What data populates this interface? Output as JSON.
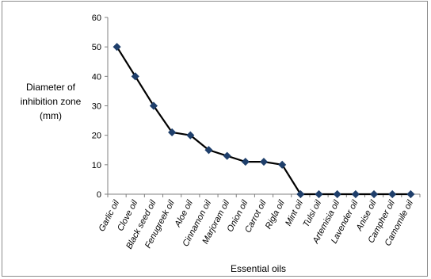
{
  "chart_data": {
    "type": "line",
    "title": "",
    "xlabel": "Essential oils",
    "ylabel_lines": [
      "Diameter of",
      "inhibition zone",
      "(mm)"
    ],
    "ylim": [
      0,
      60
    ],
    "yticks": [
      0,
      10,
      20,
      30,
      40,
      50,
      60
    ],
    "grid": false,
    "legend": "none",
    "categories": [
      "Garlic oil",
      "Clove oil",
      "Black seed oil",
      "Fenugreek oil",
      "Aloe oil",
      "Cinnamon oil",
      "Marjoram oil",
      "Onion oil",
      "Carrot oil",
      "Rigla oil",
      "Mint oil",
      "Tulsi oil",
      "Artemisia oil",
      "Lavender oil",
      "Anise oil",
      "Campher oil",
      "Camomile oil"
    ],
    "series": [
      {
        "values": [
          50,
          40,
          30,
          21,
          20,
          15,
          13,
          11,
          11,
          10,
          0,
          0,
          0,
          0,
          0,
          0,
          0
        ]
      }
    ],
    "colors": {
      "line": "#000000",
      "marker": "#1f3f6b",
      "axis": "#808080"
    }
  }
}
